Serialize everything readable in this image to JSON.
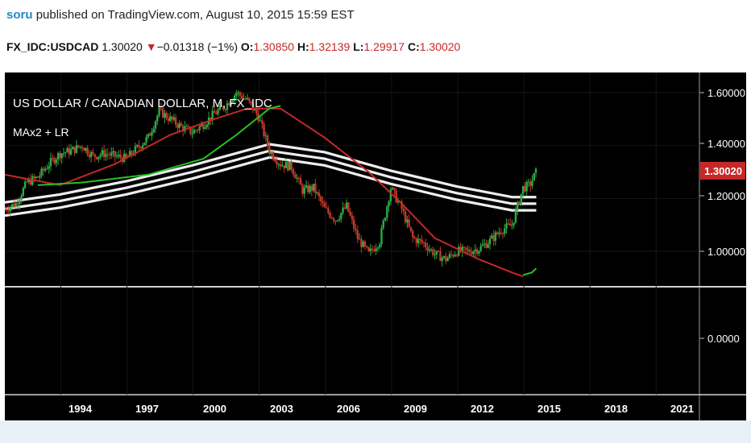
{
  "header": {
    "user": "soru",
    "published": "published on TradingView.com, August 10, 2015 15:59 EST"
  },
  "quote": {
    "symbol": "FX_IDC:USDCAD",
    "last": "1.30020",
    "change": "−0.01318 (−1%)",
    "o_label": "O:",
    "o_value": "1.30850",
    "h_label": "H:",
    "h_value": "1.32139",
    "l_label": "L:",
    "l_value": "1.29917",
    "c_label": "C:",
    "c_value": "1.30020"
  },
  "chart": {
    "title": "US DOLLAR / CANADIAN DOLLAR, M, FX_IDC",
    "indicator": "MAx2 + LR",
    "last_price_label": "1.30020",
    "price_ticks": [
      "1.60000",
      "1.40000",
      "1.20000",
      "1.00000"
    ],
    "indicator_ticks": [
      "0.0000"
    ],
    "x_ticks": [
      "1994",
      "1997",
      "2000",
      "2003",
      "2006",
      "2009",
      "2012",
      "2015",
      "2018",
      "2021"
    ],
    "colors": {
      "up": "#2eaa44",
      "down": "#c0392b",
      "ma_long": "#c62828",
      "ma_short": "#22c422",
      "channel": "#ffffff",
      "last_label_bg": "#c62828"
    }
  },
  "chart_data": {
    "type": "candlestick",
    "title": "US DOLLAR / CANADIAN DOLLAR, M, FX_IDC",
    "x_range": [
      1991.5,
      2023.0
    ],
    "y_range": [
      0.86,
      1.645
    ],
    "close_points": [
      [
        1991.5,
        1.16
      ],
      [
        1992.0,
        1.18
      ],
      [
        1992.5,
        1.26
      ],
      [
        1993.0,
        1.28
      ],
      [
        1993.5,
        1.33
      ],
      [
        1994.0,
        1.37
      ],
      [
        1994.5,
        1.38
      ],
      [
        1995.0,
        1.4
      ],
      [
        1995.5,
        1.36
      ],
      [
        1996.0,
        1.37
      ],
      [
        1996.5,
        1.36
      ],
      [
        1997.0,
        1.35
      ],
      [
        1997.5,
        1.39
      ],
      [
        1998.0,
        1.43
      ],
      [
        1998.5,
        1.53
      ],
      [
        1999.0,
        1.5
      ],
      [
        1999.5,
        1.47
      ],
      [
        2000.0,
        1.45
      ],
      [
        2000.5,
        1.48
      ],
      [
        2001.0,
        1.52
      ],
      [
        2001.5,
        1.55
      ],
      [
        2002.0,
        1.6
      ],
      [
        2002.5,
        1.57
      ],
      [
        2003.0,
        1.51
      ],
      [
        2003.5,
        1.38
      ],
      [
        2004.0,
        1.33
      ],
      [
        2004.5,
        1.32
      ],
      [
        2005.0,
        1.23
      ],
      [
        2005.5,
        1.24
      ],
      [
        2006.0,
        1.16
      ],
      [
        2006.5,
        1.12
      ],
      [
        2007.0,
        1.17
      ],
      [
        2007.5,
        1.05
      ],
      [
        2008.0,
        0.99
      ],
      [
        2008.5,
        1.04
      ],
      [
        2009.0,
        1.24
      ],
      [
        2009.5,
        1.16
      ],
      [
        2010.0,
        1.05
      ],
      [
        2010.5,
        1.03
      ],
      [
        2011.0,
        0.99
      ],
      [
        2011.5,
        0.97
      ],
      [
        2012.0,
        1.0
      ],
      [
        2012.5,
        1.0
      ],
      [
        2013.0,
        1.01
      ],
      [
        2013.5,
        1.04
      ],
      [
        2014.0,
        1.08
      ],
      [
        2014.5,
        1.1
      ],
      [
        2015.0,
        1.24
      ],
      [
        2015.3,
        1.25
      ],
      [
        2015.6,
        1.3
      ]
    ],
    "ma_long": [
      [
        1991.5,
        1.29
      ],
      [
        1994.0,
        1.25
      ],
      [
        1996.5,
        1.33
      ],
      [
        1999.0,
        1.44
      ],
      [
        2001.0,
        1.5
      ],
      [
        2002.5,
        1.54
      ],
      [
        2004.0,
        1.54
      ],
      [
        2006.0,
        1.43
      ],
      [
        2008.0,
        1.3
      ],
      [
        2009.5,
        1.18
      ],
      [
        2011.0,
        1.05
      ],
      [
        2013.0,
        0.97
      ],
      [
        2014.5,
        0.92
      ],
      [
        2015.0,
        0.905
      ]
    ],
    "ma_short": [
      [
        1993.0,
        1.25
      ],
      [
        1995.0,
        1.26
      ],
      [
        1998.0,
        1.29
      ],
      [
        2000.5,
        1.35
      ],
      [
        2002.0,
        1.44
      ],
      [
        2003.5,
        1.54
      ],
      [
        2004.0,
        1.55
      ]
    ],
    "ma_short_tail": [
      [
        2015.0,
        0.91
      ],
      [
        2015.4,
        0.92
      ],
      [
        2015.6,
        0.935
      ]
    ],
    "regression_channel_mid": [
      [
        1991.5,
        1.16
      ],
      [
        1994.0,
        1.19
      ],
      [
        1997.0,
        1.24
      ],
      [
        2000.0,
        1.3
      ],
      [
        2003.5,
        1.38
      ],
      [
        2006.0,
        1.35
      ],
      [
        2009.0,
        1.28
      ],
      [
        2012.0,
        1.22
      ],
      [
        2014.5,
        1.18
      ],
      [
        2015.6,
        1.18
      ]
    ],
    "last_price": 1.3002
  }
}
